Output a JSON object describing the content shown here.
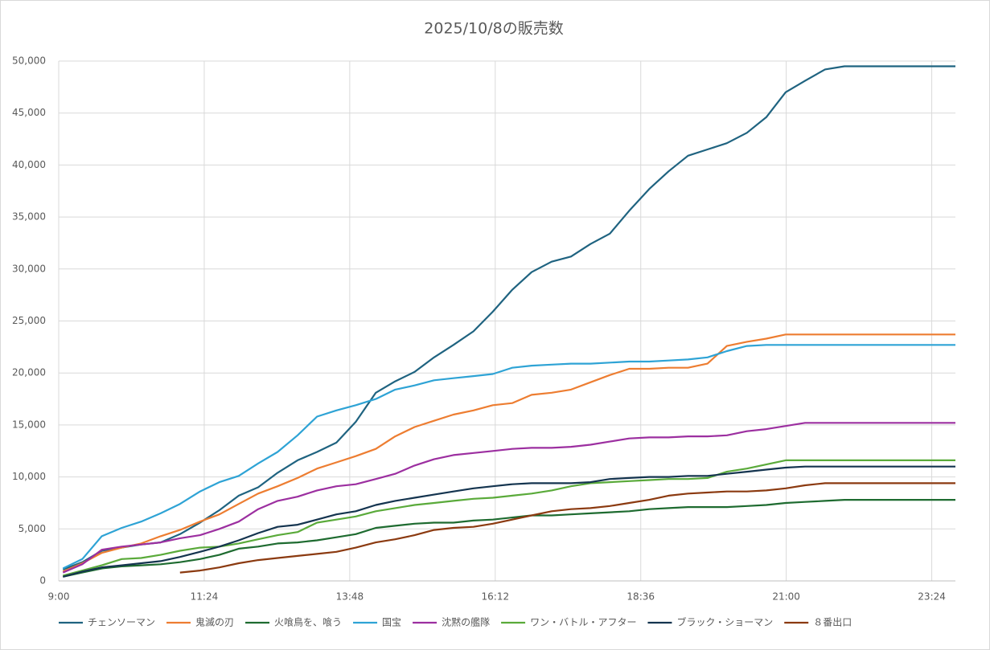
{
  "chart_data": {
    "type": "line",
    "title": "2025/10/8の販売数",
    "x": [
      9.07,
      9.39,
      9.71,
      10.04,
      10.36,
      10.68,
      11.0,
      11.33,
      11.65,
      11.97,
      12.29,
      12.61,
      12.94,
      13.26,
      13.58,
      13.9,
      14.23,
      14.55,
      14.87,
      15.19,
      15.51,
      15.84,
      16.16,
      16.48,
      16.8,
      17.13,
      17.45,
      17.77,
      18.09,
      18.41,
      18.74,
      19.06,
      19.38,
      19.7,
      20.02,
      20.35,
      20.67,
      20.99,
      21.31,
      21.64,
      21.96,
      22.28,
      22.6,
      22.92,
      23.25,
      23.57,
      23.79
    ],
    "xlim": [
      9,
      23.79
    ],
    "xticks": [
      {
        "value": 9,
        "label": "9:00"
      },
      {
        "value": 11.4,
        "label": "11:24"
      },
      {
        "value": 13.8,
        "label": "13:48"
      },
      {
        "value": 16.2,
        "label": "16:12"
      },
      {
        "value": 18.6,
        "label": "18:36"
      },
      {
        "value": 21,
        "label": "21:00"
      },
      {
        "value": 23.4,
        "label": "23:24"
      }
    ],
    "ylim": [
      0,
      50000
    ],
    "yticks": [
      0,
      {
        "value": 5000,
        "label": "5,000"
      },
      {
        "value": 10000,
        "label": "10,000"
      },
      {
        "value": 15000,
        "label": "15,000"
      },
      {
        "value": 20000,
        "label": "20,000"
      },
      {
        "value": 25000,
        "label": "25,000"
      },
      {
        "value": 30000,
        "label": "30,000"
      },
      {
        "value": 35000,
        "label": "35,000"
      },
      {
        "value": 40000,
        "label": "40,000"
      },
      {
        "value": 45000,
        "label": "45,000"
      },
      {
        "value": 50000,
        "label": "50,000"
      }
    ],
    "grid": true,
    "legend": "bottom",
    "series": [
      {
        "name": "チェンソーマン",
        "color": "#1f6380",
        "values": [
          1100,
          1800,
          2900,
          3200,
          3500,
          3700,
          4500,
          5600,
          6800,
          8200,
          9000,
          10400,
          11600,
          12400,
          13300,
          15300,
          18100,
          19200,
          20100,
          21500,
          22700,
          24000,
          25900,
          28000,
          29700,
          30700,
          31200,
          32400,
          33400,
          35600,
          37700,
          39400,
          40900,
          41500,
          42100,
          43100,
          44600,
          47000,
          48100,
          49200,
          49500,
          49500,
          49500,
          49500,
          49500,
          49500,
          49500
        ]
      },
      {
        "name": "鬼滅の刃",
        "color": "#ed7d31",
        "values": [
          900,
          1700,
          2700,
          3200,
          3600,
          4300,
          4900,
          5700,
          6400,
          7400,
          8400,
          9100,
          9900,
          10800,
          11400,
          12000,
          12700,
          13900,
          14800,
          15400,
          16000,
          16400,
          16900,
          17100,
          17900,
          18100,
          18400,
          19100,
          19800,
          20400,
          20400,
          20500,
          20500,
          20900,
          22600,
          23000,
          23300,
          23700,
          23700,
          23700,
          23700,
          23700,
          23700,
          23700,
          23700,
          23700,
          23700
        ]
      },
      {
        "name": "火喰鳥を、喰う",
        "color": "#1e6b30",
        "values": [
          400,
          800,
          1200,
          1400,
          1500,
          1600,
          1800,
          2100,
          2500,
          3100,
          3300,
          3600,
          3700,
          3900,
          4200,
          4500,
          5100,
          5300,
          5500,
          5600,
          5600,
          5800,
          5900,
          6100,
          6300,
          6300,
          6400,
          6500,
          6600,
          6700,
          6900,
          7000,
          7100,
          7100,
          7100,
          7200,
          7300,
          7500,
          7600,
          7700,
          7800,
          7800,
          7800,
          7800,
          7800,
          7800,
          7800
        ]
      },
      {
        "name": "国宝",
        "color": "#2ea3d5",
        "values": [
          1200,
          2100,
          4300,
          5100,
          5700,
          6500,
          7400,
          8600,
          9500,
          10100,
          11300,
          12400,
          14000,
          15800,
          16400,
          16900,
          17500,
          18400,
          18800,
          19300,
          19500,
          19700,
          19900,
          20500,
          20700,
          20800,
          20900,
          20900,
          21000,
          21100,
          21100,
          21200,
          21300,
          21500,
          22100,
          22600,
          22700,
          22700,
          22700,
          22700,
          22700,
          22700,
          22700,
          22700,
          22700,
          22700,
          22700
        ]
      },
      {
        "name": "沈黙の艦隊",
        "color": "#9c2fa0",
        "values": [
          800,
          1600,
          3000,
          3300,
          3500,
          3700,
          4100,
          4400,
          5000,
          5700,
          6900,
          7700,
          8100,
          8700,
          9100,
          9300,
          9800,
          10300,
          11100,
          11700,
          12100,
          12300,
          12500,
          12700,
          12800,
          12800,
          12900,
          13100,
          13400,
          13700,
          13800,
          13800,
          13900,
          13900,
          14000,
          14400,
          14600,
          14900,
          15200,
          15200,
          15200,
          15200,
          15200,
          15200,
          15200,
          15200,
          15200
        ]
      },
      {
        "name": "ワン・バトル・アフター",
        "color": "#5aaa3a",
        "values": [
          500,
          1000,
          1500,
          2100,
          2200,
          2500,
          2900,
          3200,
          3300,
          3600,
          4000,
          4400,
          4700,
          5600,
          5900,
          6200,
          6700,
          7000,
          7300,
          7500,
          7700,
          7900,
          8000,
          8200,
          8400,
          8700,
          9100,
          9400,
          9500,
          9600,
          9700,
          9800,
          9800,
          9900,
          10500,
          10800,
          11200,
          11600,
          11600,
          11600,
          11600,
          11600,
          11600,
          11600,
          11600,
          11600,
          11600
        ]
      },
      {
        "name": "ブラック・ショーマン",
        "color": "#14344f",
        "values": [
          400,
          900,
          1300,
          1500,
          1700,
          1900,
          2300,
          2800,
          3300,
          3900,
          4600,
          5200,
          5400,
          5900,
          6400,
          6700,
          7300,
          7700,
          8000,
          8300,
          8600,
          8900,
          9100,
          9300,
          9400,
          9400,
          9400,
          9500,
          9800,
          9900,
          10000,
          10000,
          10100,
          10100,
          10300,
          10500,
          10700,
          10900,
          11000,
          11000,
          11000,
          11000,
          11000,
          11000,
          11000,
          11000,
          11000
        ]
      },
      {
        "name": "８番出口",
        "color": "#8b3a10",
        "values": [
          null,
          null,
          null,
          null,
          null,
          null,
          800,
          1000,
          1300,
          1700,
          2000,
          2200,
          2400,
          2600,
          2800,
          3200,
          3700,
          4000,
          4400,
          4900,
          5100,
          5200,
          5500,
          5900,
          6300,
          6700,
          6900,
          7000,
          7200,
          7500,
          7800,
          8200,
          8400,
          8500,
          8600,
          8600,
          8700,
          8900,
          9200,
          9400,
          9400,
          9400,
          9400,
          9400,
          9400,
          9400,
          9400
        ]
      }
    ]
  }
}
